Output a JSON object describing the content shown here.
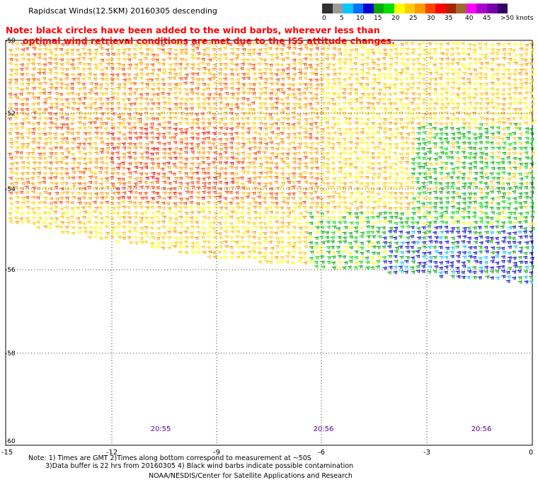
{
  "title": "Rapidscat Winds(12.5KM) 20160305 descending",
  "warning": {
    "line1": "Note: black circles have been added to the wind barbs, wherever less than",
    "line2": "optimal wind retrieval conditions are met due to the ISS attitude changes."
  },
  "legend": {
    "labels": [
      "0",
      "5",
      "10",
      "15",
      "20",
      "25",
      "30",
      "35",
      "40",
      "45",
      ">50 knots"
    ],
    "colors": [
      "#303030",
      "#9a9a9a",
      "#00c8ff",
      "#0070ff",
      "#0000cc",
      "#00aa00",
      "#00dd00",
      "#ffff00",
      "#ffcc00",
      "#ff9900",
      "#ff4400",
      "#ff0000",
      "#aa2200",
      "#a06a30",
      "#ff00ff",
      "#aa00cc",
      "#7700aa",
      "#330066"
    ]
  },
  "map": {
    "lat_labels": [
      "-50",
      "-52",
      "-54",
      "-56",
      "-58",
      "-60"
    ],
    "lon_labels": [
      "-15",
      "-12",
      "-9",
      "-6",
      "-3",
      "0"
    ],
    "times": [
      "20:55",
      "20:56",
      "20:56"
    ]
  },
  "footer": {
    "note1": "Note: 1) Times are GMT 2)Times along bottom correspond to measurement at ~50S",
    "note2": "3)Data buffer is 22 hrs from 20160305 4) Black wind barbs indicate possible contamination",
    "credit": "NOAA/NESDIS/Center for Satellite Applications and Research"
  }
}
